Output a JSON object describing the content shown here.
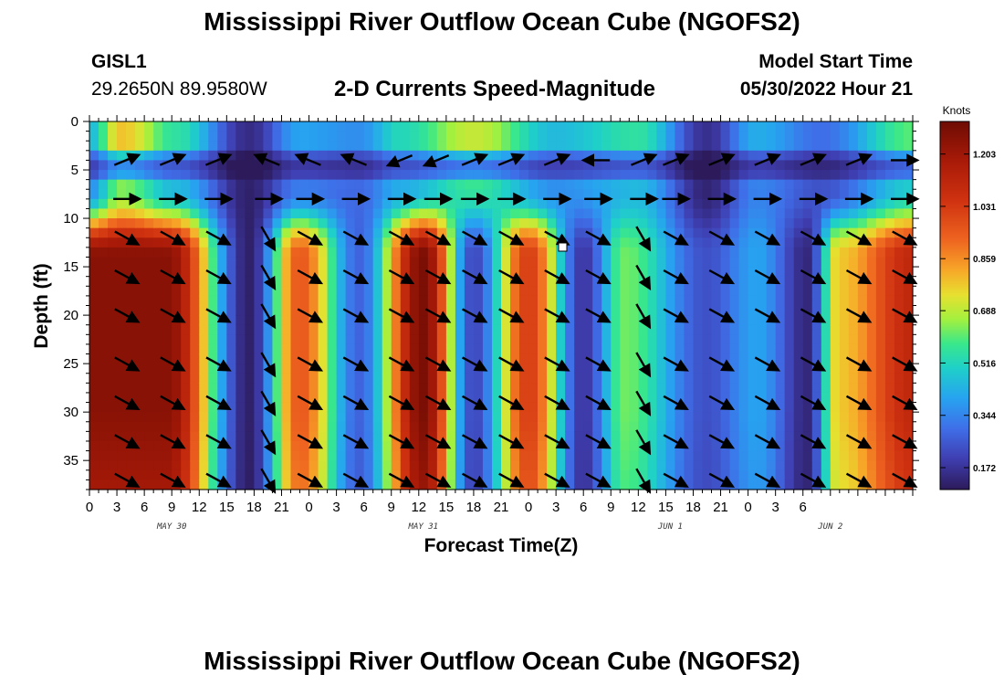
{
  "header": {
    "title": "Mississippi River Outflow Ocean Cube (NGOFS2)",
    "station_id": "GISL1",
    "station_coords": "29.2650N  89.9580W",
    "subtitle": "2-D Currents Speed-Magnitude",
    "model_start_label": "Model Start Time",
    "model_start_value": "05/30/2022 Hour 21"
  },
  "footer": {
    "title": "Mississippi River Outflow Ocean Cube (NGOFS2)"
  },
  "chart_data": {
    "type": "heatmap",
    "title": "2-D Currents Speed-Magnitude",
    "xlabel": "Forecast Time(Z)",
    "ylabel": "Depth (ft)",
    "x_hours_range": [
      0,
      90
    ],
    "x_tick_labels": [
      "0",
      "3",
      "6",
      "9",
      "12",
      "15",
      "18",
      "21",
      "0",
      "3",
      "6",
      "9",
      "12",
      "15",
      "18",
      "21",
      "0",
      "3",
      "6",
      "9",
      "12",
      "15",
      "18",
      "21",
      "0",
      "3",
      "6"
    ],
    "day_labels": [
      {
        "label": "MAY 30",
        "hour": 9
      },
      {
        "label": "MAY 31",
        "hour": 36.5
      },
      {
        "label": "JUN 1",
        "hour": 63.5
      },
      {
        "label": "JUN 2",
        "hour": 81
      }
    ],
    "y_range": [
      0,
      38
    ],
    "y_ticks": [
      0,
      5,
      10,
      15,
      20,
      25,
      30,
      35
    ],
    "colorbar": {
      "unit": "Knots",
      "range": [
        0.1,
        1.31
      ],
      "ticks": [
        "1.203",
        "1.031",
        "0.859",
        "0.688",
        "0.516",
        "0.344",
        "0.172"
      ],
      "tick_values": [
        1.203,
        1.031,
        0.859,
        0.688,
        0.516,
        0.344,
        0.172
      ],
      "stops": [
        {
          "v": 0.1,
          "c": "#2c1a5a"
        },
        {
          "v": 0.2,
          "c": "#3f3eb0"
        },
        {
          "v": 0.3,
          "c": "#3f6ee8"
        },
        {
          "v": 0.4,
          "c": "#27a3f0"
        },
        {
          "v": 0.5,
          "c": "#1fd0c8"
        },
        {
          "v": 0.58,
          "c": "#3ae88a"
        },
        {
          "v": 0.66,
          "c": "#a4f03e"
        },
        {
          "v": 0.74,
          "c": "#e7e030"
        },
        {
          "v": 0.82,
          "c": "#f7a828"
        },
        {
          "v": 0.92,
          "c": "#ee6420"
        },
        {
          "v": 1.05,
          "c": "#cf3210"
        },
        {
          "v": 1.18,
          "c": "#a81a08"
        },
        {
          "v": 1.31,
          "c": "#6e0c04"
        }
      ]
    },
    "speed_deep_peaks": [
      {
        "hour": 8.5,
        "value": 1.25
      },
      {
        "hour": 17.5,
        "value": 0.12
      },
      {
        "hour": 23,
        "value": 0.95
      },
      {
        "hour": 29.5,
        "value": 0.28
      },
      {
        "hour": 36.5,
        "value": 1.28
      },
      {
        "hour": 42,
        "value": 0.22
      },
      {
        "hour": 48,
        "value": 1.02
      },
      {
        "hour": 54,
        "value": 0.18
      },
      {
        "hour": 58.5,
        "value": 0.62
      },
      {
        "hour": 67.5,
        "value": 0.24
      },
      {
        "hour": 73,
        "value": 0.4
      },
      {
        "hour": 78.5,
        "value": 0.14
      },
      {
        "hour": 82,
        "value": 0.78
      },
      {
        "hour": 90,
        "value": 1.1
      }
    ],
    "speed_surface_peaks": [
      {
        "hour": 0,
        "value": 0.45
      },
      {
        "hour": 3.5,
        "value": 0.78
      },
      {
        "hour": 9.5,
        "value": 0.55
      },
      {
        "hour": 17.5,
        "value": 0.15
      },
      {
        "hour": 23,
        "value": 0.4
      },
      {
        "hour": 29.5,
        "value": 0.36
      },
      {
        "hour": 34,
        "value": 0.52
      },
      {
        "hour": 42,
        "value": 0.7
      },
      {
        "hour": 51,
        "value": 0.45
      },
      {
        "hour": 60,
        "value": 0.55
      },
      {
        "hour": 67.5,
        "value": 0.16
      },
      {
        "hour": 73,
        "value": 0.42
      },
      {
        "hour": 80,
        "value": 0.3
      },
      {
        "hour": 90,
        "value": 0.6
      }
    ],
    "vector_rows_depth_ft": [
      4,
      8,
      12,
      16,
      20,
      25,
      29,
      33,
      37
    ],
    "vector_columns": [
      {
        "hour": 4,
        "dir": "SE"
      },
      {
        "hour": 9,
        "dir": "SE"
      },
      {
        "hour": 14,
        "dir": "SE"
      },
      {
        "hour": 19.5,
        "dir": "SSE"
      },
      {
        "hour": 24,
        "dir": "SE"
      },
      {
        "hour": 29,
        "dir": "SE"
      },
      {
        "hour": 34,
        "dir": "SE"
      },
      {
        "hour": 38,
        "dir": "SE"
      },
      {
        "hour": 42,
        "dir": "SE"
      },
      {
        "hour": 46,
        "dir": "SE"
      },
      {
        "hour": 51,
        "dir": "SE"
      },
      {
        "hour": 55.5,
        "dir": "SE"
      },
      {
        "hour": 60.5,
        "dir": "SSE"
      },
      {
        "hour": 64,
        "dir": "SE"
      },
      {
        "hour": 69,
        "dir": "SE"
      },
      {
        "hour": 74,
        "dir": "SE"
      },
      {
        "hour": 79,
        "dir": "SE"
      },
      {
        "hour": 84,
        "dir": "SE"
      },
      {
        "hour": 89,
        "dir": "SE"
      }
    ],
    "vector_surface_dirs": [
      {
        "hour": 4,
        "dir": "ENE"
      },
      {
        "hour": 9,
        "dir": "ENE"
      },
      {
        "hour": 14,
        "dir": "ENE"
      },
      {
        "hour": 19.5,
        "dir": "WNW"
      },
      {
        "hour": 24,
        "dir": "WNW"
      },
      {
        "hour": 29,
        "dir": "WNW"
      },
      {
        "hour": 34,
        "dir": "WSW"
      },
      {
        "hour": 38,
        "dir": "WSW"
      },
      {
        "hour": 42,
        "dir": "ENE"
      },
      {
        "hour": 46,
        "dir": "ENE"
      },
      {
        "hour": 51,
        "dir": "ENE"
      },
      {
        "hour": 55.5,
        "dir": "W"
      },
      {
        "hour": 60.5,
        "dir": "ENE"
      },
      {
        "hour": 64,
        "dir": "ENE"
      },
      {
        "hour": 69,
        "dir": "ENE"
      },
      {
        "hour": 74,
        "dir": "ENE"
      },
      {
        "hour": 79,
        "dir": "ENE"
      },
      {
        "hour": 84,
        "dir": "ENE"
      },
      {
        "hour": 89,
        "dir": "E"
      }
    ]
  }
}
